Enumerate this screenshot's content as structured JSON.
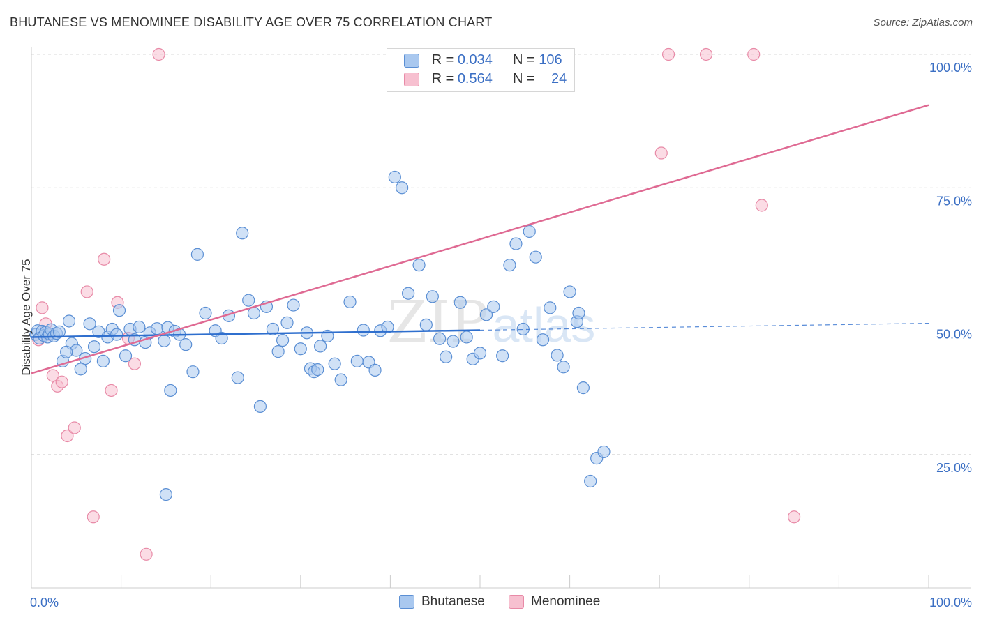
{
  "title": "BHUTANESE VS MENOMINEE DISABILITY AGE OVER 75 CORRELATION CHART",
  "source": "Source: ZipAtlas.com",
  "watermark": "ZIPatlas",
  "legend": {
    "rows": [
      {
        "r_label": "R = ",
        "r_value": "0.034",
        "n_label": "N = ",
        "n_value": "106"
      },
      {
        "r_label": "R = ",
        "r_value": "0.564",
        "n_label": "N = ",
        "n_value": "24"
      }
    ],
    "bottom": [
      "Bhutanese",
      "Menominee"
    ]
  },
  "colors": {
    "blue_fill": "#a9c8ef",
    "blue_stroke": "#5b8fd4",
    "blue_line": "#2f6fce",
    "pink_fill": "#f7c0d0",
    "pink_stroke": "#e88aa7",
    "pink_line": "#df6a93",
    "axis_text": "#3b6fc4",
    "grid": "#d9d9d9"
  },
  "chart_data": {
    "type": "scatter",
    "title": "BHUTANESE VS MENOMINEE DISABILITY AGE OVER 75 CORRELATION CHART",
    "xlabel": "",
    "ylabel": "Disability Age Over 75",
    "xlim": [
      0,
      100
    ],
    "ylim": [
      0,
      103
    ],
    "x_tick_labels": [
      "0.0%",
      "100.0%"
    ],
    "y_ticks": [
      25,
      50,
      75,
      100
    ],
    "y_tick_labels": [
      "25.0%",
      "50.0%",
      "75.0%",
      "100.0%"
    ],
    "grid": "horizontal dashed",
    "series": [
      {
        "name": "Bhutanese",
        "r": 0.034,
        "n": 106,
        "points": [
          [
            0.5,
            47.5
          ],
          [
            0.7,
            48.2
          ],
          [
            0.9,
            46.8
          ],
          [
            1.2,
            48.1
          ],
          [
            1.4,
            47.3
          ],
          [
            1.6,
            47.9
          ],
          [
            1.8,
            47.0
          ],
          [
            2.0,
            47.6
          ],
          [
            2.2,
            48.4
          ],
          [
            2.5,
            47.2
          ],
          [
            4.2,
            50.0
          ],
          [
            2.8,
            47.7
          ],
          [
            3.1,
            48.0
          ],
          [
            4.5,
            45.8
          ],
          [
            5.0,
            44.5
          ],
          [
            3.5,
            42.5
          ],
          [
            3.9,
            44.2
          ],
          [
            6.0,
            43.0
          ],
          [
            5.5,
            41.0
          ],
          [
            6.5,
            49.5
          ],
          [
            7.0,
            45.2
          ],
          [
            7.5,
            48.0
          ],
          [
            8.0,
            42.5
          ],
          [
            8.5,
            47.0
          ],
          [
            9.0,
            48.5
          ],
          [
            9.5,
            47.5
          ],
          [
            9.8,
            52.0
          ],
          [
            10.5,
            43.5
          ],
          [
            11.0,
            48.5
          ],
          [
            11.5,
            46.5
          ],
          [
            12.0,
            48.9
          ],
          [
            12.7,
            46.0
          ],
          [
            13.2,
            47.8
          ],
          [
            14.0,
            48.6
          ],
          [
            14.8,
            46.3
          ],
          [
            15.2,
            48.8
          ],
          [
            15.5,
            37.0
          ],
          [
            16.0,
            48.1
          ],
          [
            16.5,
            47.5
          ],
          [
            17.2,
            45.6
          ],
          [
            18.0,
            40.5
          ],
          [
            18.5,
            62.5
          ],
          [
            19.4,
            51.5
          ],
          [
            20.5,
            48.2
          ],
          [
            21.2,
            46.8
          ],
          [
            22.0,
            51.0
          ],
          [
            23.0,
            39.4
          ],
          [
            23.5,
            66.5
          ],
          [
            24.2,
            53.9
          ],
          [
            24.8,
            51.5
          ],
          [
            25.5,
            34.0
          ],
          [
            26.2,
            52.7
          ],
          [
            26.9,
            48.5
          ],
          [
            27.5,
            44.3
          ],
          [
            28.0,
            46.4
          ],
          [
            28.5,
            49.7
          ],
          [
            29.2,
            53.0
          ],
          [
            30.0,
            44.8
          ],
          [
            30.7,
            47.8
          ],
          [
            31.1,
            41.1
          ],
          [
            31.5,
            40.5
          ],
          [
            31.9,
            40.9
          ],
          [
            32.2,
            45.3
          ],
          [
            33.0,
            47.2
          ],
          [
            33.8,
            42.0
          ],
          [
            34.5,
            39.0
          ],
          [
            35.5,
            53.6
          ],
          [
            36.3,
            42.5
          ],
          [
            37.0,
            48.3
          ],
          [
            37.6,
            42.3
          ],
          [
            38.3,
            40.8
          ],
          [
            38.9,
            48.2
          ],
          [
            39.7,
            48.9
          ],
          [
            40.5,
            77.0
          ],
          [
            41.3,
            75.0
          ],
          [
            42.0,
            55.2
          ],
          [
            43.2,
            60.5
          ],
          [
            44.0,
            49.3
          ],
          [
            44.7,
            54.6
          ],
          [
            45.5,
            46.7
          ],
          [
            46.2,
            43.3
          ],
          [
            47.0,
            46.2
          ],
          [
            47.8,
            53.5
          ],
          [
            48.5,
            47.0
          ],
          [
            49.2,
            42.9
          ],
          [
            50.0,
            44.0
          ],
          [
            50.7,
            51.2
          ],
          [
            51.5,
            52.7
          ],
          [
            52.5,
            43.5
          ],
          [
            53.3,
            60.5
          ],
          [
            54.0,
            64.5
          ],
          [
            54.8,
            48.5
          ],
          [
            55.5,
            66.8
          ],
          [
            56.2,
            62.0
          ],
          [
            57.0,
            46.5
          ],
          [
            57.8,
            52.5
          ],
          [
            58.6,
            43.6
          ],
          [
            59.3,
            41.4
          ],
          [
            60.0,
            55.5
          ],
          [
            60.8,
            49.9
          ],
          [
            61.5,
            37.5
          ],
          [
            62.3,
            20.0
          ],
          [
            63.0,
            24.3
          ],
          [
            63.8,
            25.5
          ],
          [
            61.0,
            51.5
          ],
          [
            15.0,
            17.5
          ]
        ]
      },
      {
        "name": "Menominee",
        "r": 0.564,
        "n": 24,
        "points": [
          [
            0.8,
            46.5
          ],
          [
            1.2,
            52.5
          ],
          [
            1.6,
            49.5
          ],
          [
            2.0,
            47.5
          ],
          [
            2.4,
            39.8
          ],
          [
            2.9,
            37.8
          ],
          [
            3.4,
            38.6
          ],
          [
            4.0,
            28.5
          ],
          [
            4.8,
            30.0
          ],
          [
            6.2,
            55.5
          ],
          [
            6.9,
            13.3
          ],
          [
            8.1,
            61.6
          ],
          [
            8.9,
            37.0
          ],
          [
            9.6,
            53.5
          ],
          [
            10.8,
            46.8
          ],
          [
            11.5,
            42.0
          ],
          [
            12.8,
            6.3
          ],
          [
            14.2,
            100.0
          ],
          [
            70.2,
            81.5
          ],
          [
            71.0,
            100.0
          ],
          [
            75.2,
            100.0
          ],
          [
            80.5,
            100.0
          ],
          [
            81.4,
            71.7
          ],
          [
            85.0,
            13.3
          ]
        ]
      }
    ],
    "trendlines": [
      {
        "name": "Bhutanese",
        "x0": 0,
        "y0": 47.0,
        "x1": 50,
        "y1": 48.3,
        "x_dashed_end": 100,
        "y_dashed_end": 49.6
      },
      {
        "name": "Menominee",
        "x0": 0,
        "y0": 40.2,
        "x1": 100,
        "y1": 90.5
      }
    ]
  }
}
